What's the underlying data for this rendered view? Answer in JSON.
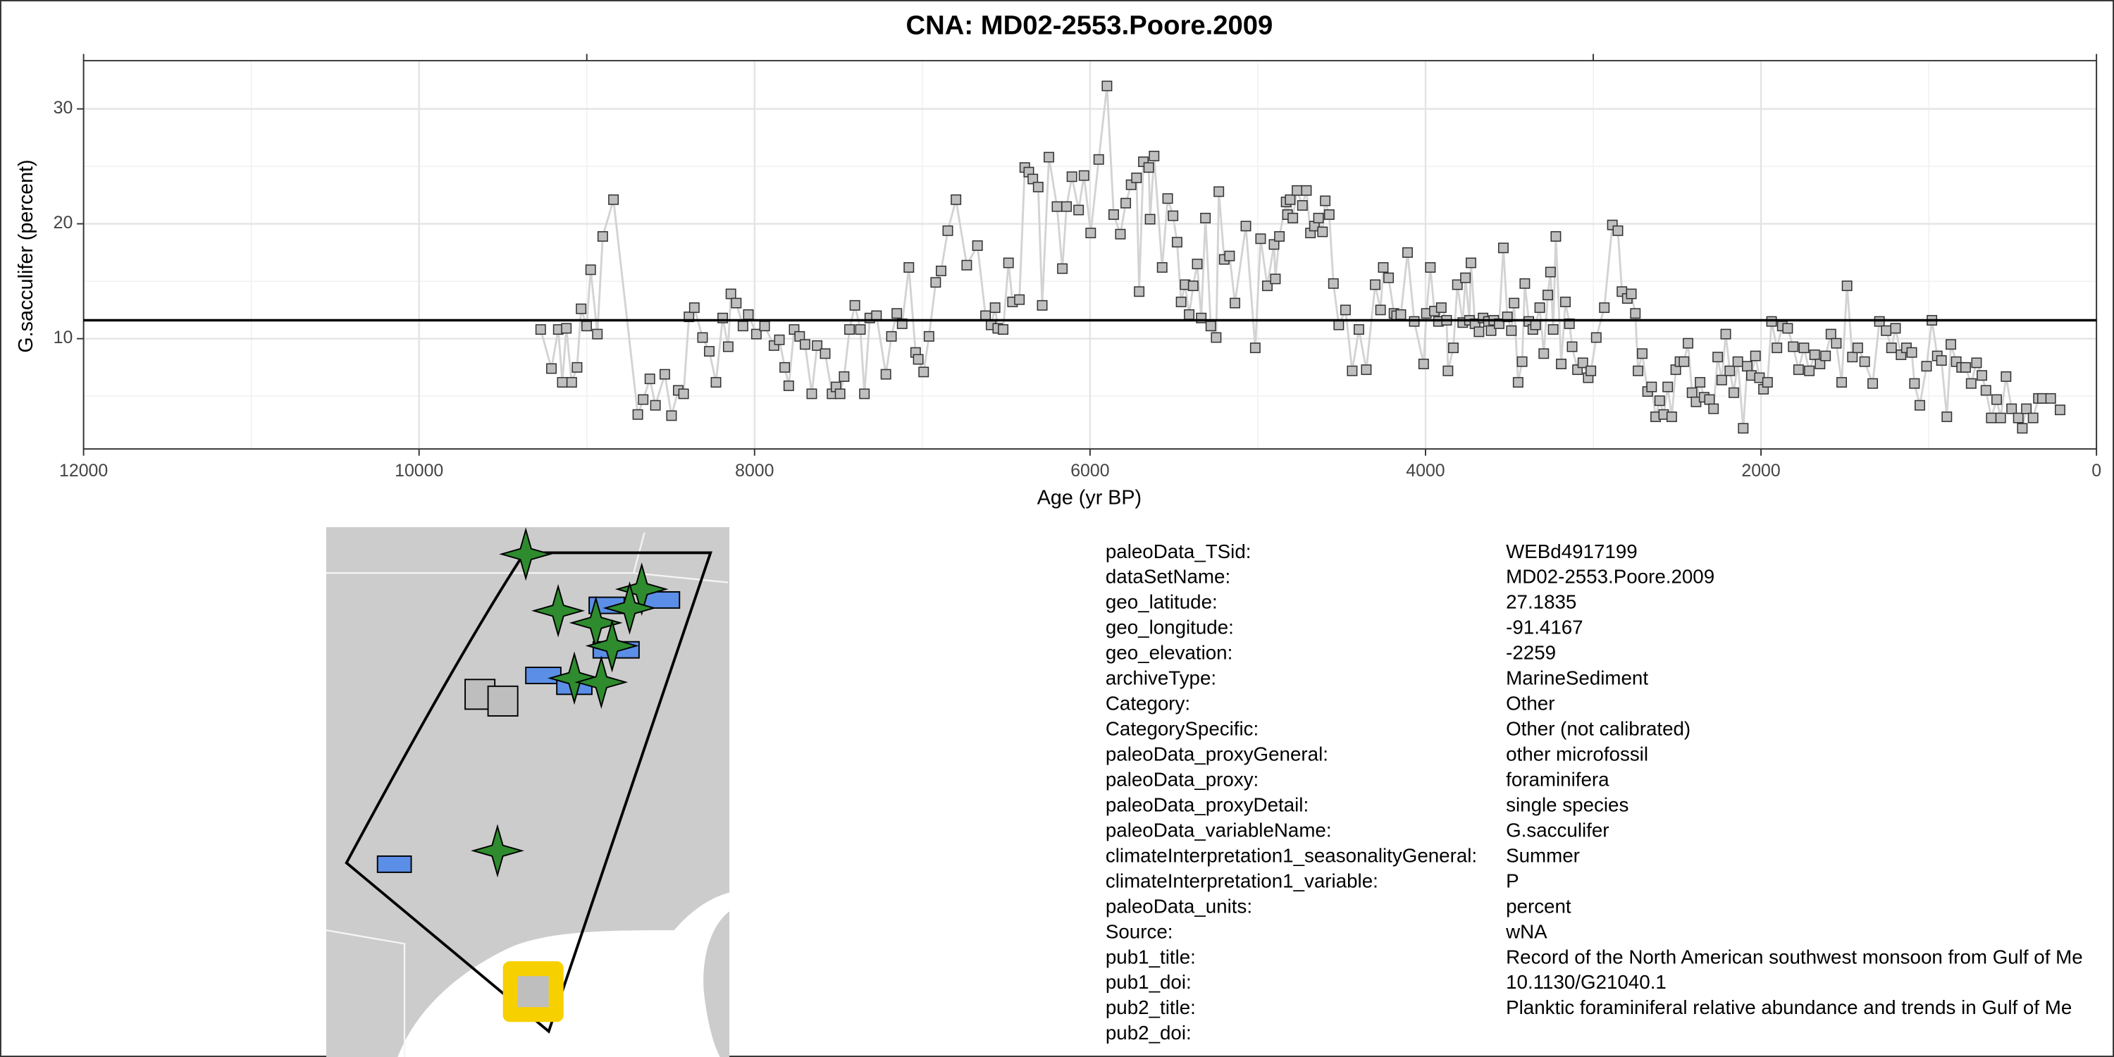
{
  "chart_data": {
    "type": "line",
    "title": "CNA: MD02-2553.Poore.2009",
    "x_label": "Age (yr BP)",
    "y_label": "G.sacculifer (percent)",
    "x": [
      9275,
      9211,
      9170,
      9146,
      9122,
      9090,
      9058,
      9034,
      9001,
      8977,
      8937,
      8905,
      8841,
      8696,
      8664,
      8624,
      8591,
      8535,
      8495,
      8455,
      8423,
      8391,
      8359,
      8310,
      8270,
      8230,
      8190,
      8157,
      8141,
      8109,
      8069,
      8037,
      7989,
      7940,
      7884,
      7852,
      7820,
      7796,
      7764,
      7731,
      7699,
      7659,
      7627,
      7579,
      7538,
      7514,
      7490,
      7466,
      7434,
      7402,
      7369,
      7345,
      7313,
      7273,
      7217,
      7184,
      7152,
      7120,
      7080,
      7040,
      7024,
      6992,
      6960,
      6920,
      6888,
      6848,
      6799,
      6735,
      6671,
      6623,
      6590,
      6566,
      6550,
      6518,
      6486,
      6462,
      6421,
      6389,
      6365,
      6341,
      6309,
      6285,
      6245,
      6197,
      6165,
      6140,
      6108,
      6068,
      6036,
      5996,
      5948,
      5899,
      5859,
      5819,
      5787,
      5755,
      5723,
      5707,
      5682,
      5650,
      5642,
      5618,
      5570,
      5537,
      5505,
      5481,
      5457,
      5433,
      5409,
      5385,
      5361,
      5337,
      5312,
      5280,
      5248,
      5232,
      5200,
      5168,
      5136,
      5071,
      5015,
      4983,
      4943,
      4903,
      4895,
      4871,
      4831,
      4823,
      4807,
      4791,
      4766,
      4734,
      4710,
      4686,
      4662,
      4638,
      4614,
      4598,
      4574,
      4549,
      4517,
      4477,
      4437,
      4397,
      4353,
      4300,
      4268,
      4252,
      4220,
      4188,
      4172,
      4147,
      4107,
      4067,
      4011,
      3995,
      3971,
      3947,
      3923,
      3906,
      3874,
      3866,
      3834,
      3810,
      3778,
      3762,
      3738,
      3729,
      3705,
      3681,
      3657,
      3625,
      3609,
      3593,
      3561,
      3536,
      3512,
      3488,
      3472,
      3448,
      3424,
      3408,
      3384,
      3360,
      3344,
      3319,
      3295,
      3271,
      3255,
      3239,
      3223,
      3191,
      3166,
      3142,
      3126,
      3094,
      3062,
      3030,
      3014,
      2982,
      2934,
      2886,
      2853,
      2829,
      2797,
      2773,
      2749,
      2733,
      2708,
      2676,
      2652,
      2628,
      2604,
      2580,
      2556,
      2532,
      2508,
      2483,
      2459,
      2435,
      2411,
      2387,
      2363,
      2339,
      2307,
      2283,
      2258,
      2234,
      2210,
      2186,
      2162,
      2138,
      2106,
      2082,
      2057,
      2033,
      2009,
      1985,
      1961,
      1937,
      1905,
      1873,
      1841,
      1808,
      1776,
      1744,
      1712,
      1680,
      1648,
      1615,
      1583,
      1551,
      1519,
      1487,
      1455,
      1423,
      1382,
      1334,
      1294,
      1254,
      1222,
      1198,
      1165,
      1133,
      1101,
      1085,
      1053,
      1013,
      981,
      949,
      924,
      892,
      868,
      836,
      804,
      780,
      747,
      715,
      683,
      659,
      627,
      595,
      571,
      539,
      506,
      466,
      442,
      418,
      378,
      346,
      322,
      273,
      217
    ],
    "values": [
      10.8,
      7.4,
      10.8,
      6.2,
      10.9,
      6.2,
      7.5,
      12.6,
      11.1,
      16.0,
      10.4,
      18.9,
      22.1,
      3.4,
      4.7,
      6.5,
      4.2,
      6.9,
      3.3,
      5.5,
      5.2,
      11.9,
      12.7,
      10.1,
      8.9,
      6.2,
      11.8,
      9.3,
      13.9,
      13.1,
      11.1,
      12.1,
      10.4,
      11.1,
      9.4,
      9.9,
      7.5,
      5.9,
      10.8,
      10.2,
      9.5,
      5.2,
      9.4,
      8.7,
      5.2,
      5.8,
      5.2,
      6.7,
      10.8,
      12.9,
      10.8,
      5.2,
      11.8,
      12.0,
      6.9,
      10.2,
      12.2,
      11.3,
      16.2,
      8.8,
      8.2,
      7.1,
      10.2,
      14.9,
      15.9,
      19.4,
      22.1,
      16.4,
      18.1,
      12.0,
      11.2,
      12.7,
      10.9,
      10.8,
      16.6,
      13.2,
      13.4,
      24.9,
      24.5,
      23.9,
      23.2,
      12.9,
      25.8,
      21.5,
      16.1,
      21.5,
      24.1,
      21.2,
      24.2,
      19.2,
      25.6,
      32.0,
      20.8,
      19.1,
      21.8,
      23.4,
      24.0,
      14.1,
      25.4,
      24.9,
      20.4,
      25.9,
      16.2,
      22.2,
      20.7,
      18.4,
      13.2,
      14.7,
      12.1,
      14.6,
      16.5,
      11.8,
      20.5,
      11.1,
      10.1,
      22.8,
      16.9,
      17.2,
      13.1,
      19.8,
      9.2,
      18.7,
      14.6,
      18.2,
      15.2,
      18.9,
      21.9,
      20.8,
      22.1,
      20.5,
      22.9,
      21.6,
      22.9,
      19.2,
      19.8,
      20.5,
      19.3,
      22.0,
      20.8,
      14.8,
      11.2,
      12.5,
      7.2,
      10.8,
      7.3,
      14.7,
      12.5,
      16.2,
      15.3,
      12.2,
      12.0,
      12.1,
      17.5,
      11.5,
      7.8,
      12.2,
      16.2,
      12.4,
      11.5,
      12.7,
      11.6,
      7.2,
      9.2,
      14.7,
      11.4,
      15.3,
      11.6,
      16.6,
      11.3,
      10.6,
      11.8,
      11.5,
      10.7,
      11.6,
      11.3,
      17.9,
      11.9,
      10.7,
      13.1,
      6.2,
      8.0,
      14.8,
      11.5,
      10.8,
      11.2,
      12.7,
      8.7,
      13.8,
      15.8,
      10.8,
      18.9,
      7.8,
      13.2,
      11.3,
      9.3,
      7.3,
      7.9,
      6.6,
      7.2,
      10.1,
      12.7,
      19.9,
      19.4,
      14.1,
      13.5,
      13.9,
      12.2,
      7.2,
      8.7,
      5.4,
      5.8,
      3.2,
      4.6,
      3.4,
      5.8,
      3.2,
      7.3,
      8.0,
      8.0,
      9.6,
      5.3,
      4.5,
      6.2,
      4.9,
      4.7,
      3.9,
      8.4,
      6.4,
      10.4,
      7.2,
      5.3,
      8.0,
      2.2,
      7.6,
      6.8,
      8.5,
      6.6,
      5.6,
      6.2,
      11.5,
      9.2,
      11.1,
      10.9,
      9.3,
      7.3,
      9.2,
      7.2,
      8.6,
      7.8,
      8.5,
      10.4,
      9.6,
      6.2,
      14.6,
      8.4,
      9.2,
      8.0,
      6.1,
      11.5,
      10.7,
      9.2,
      10.9,
      8.6,
      9.2,
      8.8,
      6.1,
      4.2,
      7.6,
      11.6,
      8.5,
      8.1,
      3.2,
      9.5,
      8.0,
      7.5,
      7.5,
      6.1,
      7.9,
      6.8,
      5.5,
      3.1,
      4.7,
      3.1,
      6.7,
      3.9,
      3.1,
      2.2,
      3.9,
      3.1,
      4.8,
      4.8,
      4.8,
      3.8
    ],
    "line_color": "#d3d3d3",
    "marker_color": "#bfbfbf",
    "marker_edge": "#333333",
    "hline": 11.6,
    "hline_color": "#000000",
    "xlim": [
      12000,
      0
    ],
    "xticks": [
      12000,
      10000,
      8000,
      6000,
      4000,
      2000,
      0
    ],
    "minor_xticks": [
      11000,
      9000,
      7000,
      5000,
      3000,
      1000
    ],
    "x2ticks": [
      12000,
      9000,
      3000,
      0
    ],
    "ylim": [
      0.4,
      34.2
    ],
    "yticks": [
      10,
      20,
      30
    ],
    "minor_yticks": [
      5,
      15,
      25
    ],
    "grid": true
  },
  "metadata": {
    "rows": [
      [
        "paleoData_TSid:",
        "WEBd4917199"
      ],
      [
        "dataSetName:",
        "MD02-2553.Poore.2009"
      ],
      [
        "geo_latitude:",
        "27.1835"
      ],
      [
        "geo_longitude:",
        "-91.4167"
      ],
      [
        "geo_elevation:",
        "-2259"
      ],
      [
        "archiveType:",
        "MarineSediment"
      ],
      [
        "Category:",
        "Other"
      ],
      [
        "CategorySpecific:",
        "Other (not calibrated)"
      ],
      [
        "paleoData_proxyGeneral:",
        "other microfossil"
      ],
      [
        "paleoData_proxy:",
        "foraminifera"
      ],
      [
        "paleoData_proxyDetail:",
        "single species"
      ],
      [
        "paleoData_variableName:",
        "G.sacculifer"
      ],
      [
        "climateInterpretation1_seasonalityGeneral:",
        "Summer"
      ],
      [
        "climateInterpretation1_variable:",
        "P"
      ],
      [
        "paleoData_units:",
        "percent"
      ],
      [
        "Source:",
        "wNA"
      ],
      [
        "pub1_title:",
        "Record of the North American southwest monsoon from Gulf of Me"
      ],
      [
        "pub1_doi:",
        "10.1130/G21040.1"
      ],
      [
        "pub2_title:",
        "Planktic foraminiferal relative abundance and trends in Gulf of Me"
      ],
      [
        "pub2_doi:"
      ]
    ]
  }
}
